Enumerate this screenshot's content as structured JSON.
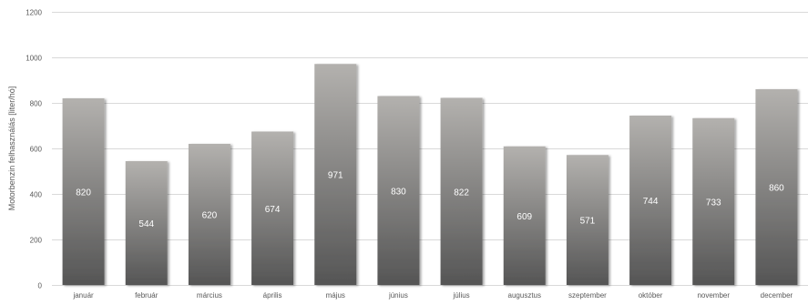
{
  "chart_data": {
    "type": "bar",
    "title": "",
    "xlabel": "",
    "ylabel": "Motorbenzin felhasználás [liter/hó]",
    "ylim": [
      0,
      1200
    ],
    "yticks": [
      0,
      200,
      400,
      600,
      800,
      1000,
      1200
    ],
    "grid": true,
    "legend": "none",
    "categories": [
      "január",
      "február",
      "március",
      "április",
      "május",
      "június",
      "július",
      "augusztus",
      "szeptember",
      "október",
      "november",
      "december"
    ],
    "values": [
      820,
      544,
      620,
      674,
      971,
      830,
      822,
      609,
      571,
      744,
      733,
      860
    ],
    "colors": {
      "bar_top": "#b3b1ae",
      "bar_bottom": "#555555",
      "label": "#ffffff",
      "grid": "#d9d9d9",
      "text": "#595959"
    }
  }
}
